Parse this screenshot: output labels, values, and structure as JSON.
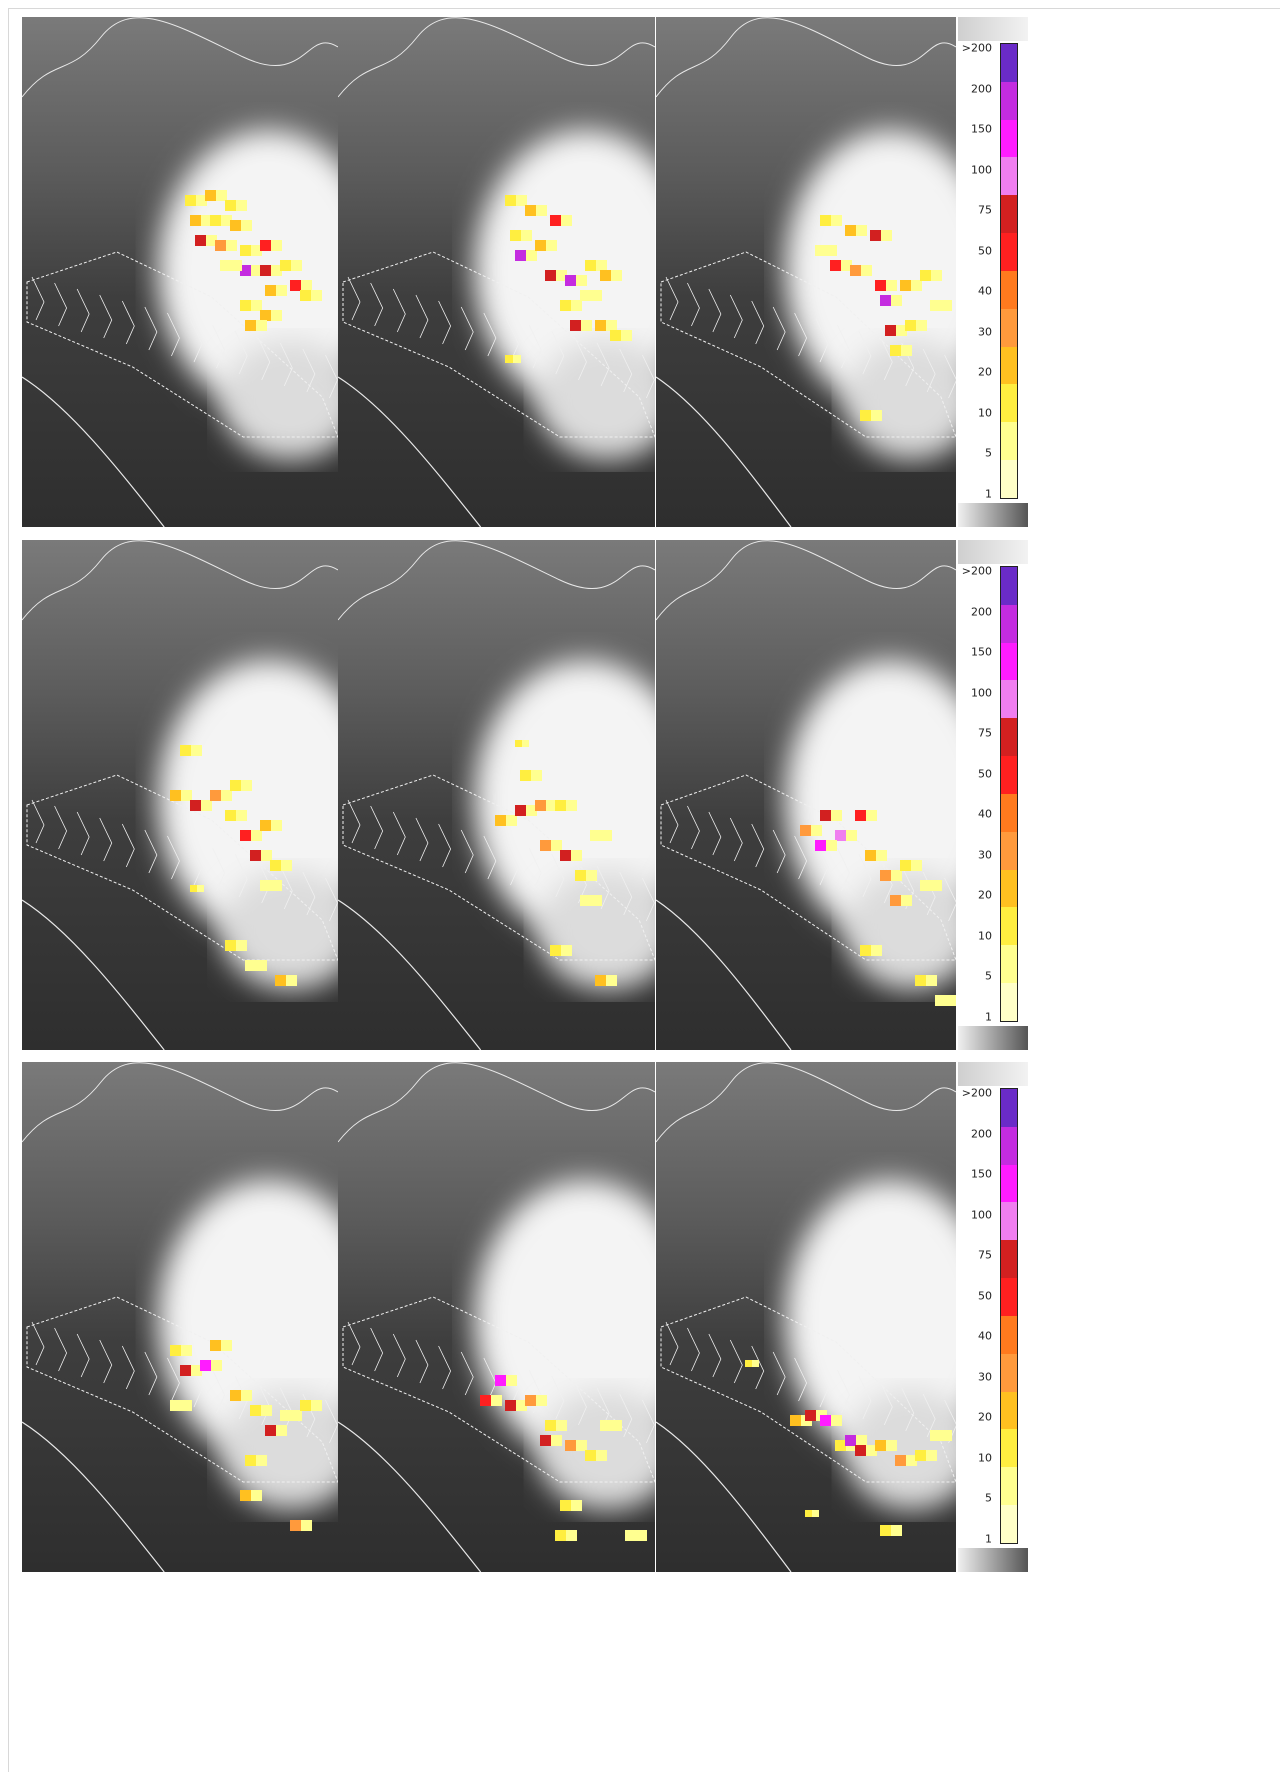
{
  "legend": {
    "labels": [
      ">200",
      "200",
      "150",
      "100",
      "75",
      "50",
      "40",
      "30",
      "20",
      "10",
      "5",
      "1"
    ],
    "colors": [
      "#6a2bc8",
      "#c42ce0",
      "#ff1cff",
      "#f07ef0",
      "#d22020",
      "#ff2020",
      "#ff7a1e",
      "#ff9a3c",
      "#ffc020",
      "#ffee40",
      "#ffff90",
      "#ffffc8"
    ]
  },
  "rows": [
    {
      "panels": [
        {
          "cells": [
            [
              185,
              195,
              22,
              "#ffee40"
            ],
            [
              205,
              190,
              22,
              "#ffc020"
            ],
            [
              225,
              200,
              22,
              "#ffee40"
            ],
            [
              190,
              215,
              22,
              "#ffc020"
            ],
            [
              210,
              215,
              22,
              "#ffee40"
            ],
            [
              230,
              220,
              22,
              "#ffc020"
            ],
            [
              195,
              235,
              22,
              "#d22020"
            ],
            [
              215,
              240,
              22,
              "#ff9a3c"
            ],
            [
              240,
              245,
              22,
              "#ffee40"
            ],
            [
              260,
              240,
              22,
              "#ff2020"
            ],
            [
              240,
              265,
              22,
              "#c42ce0"
            ],
            [
              260,
              265,
              22,
              "#d22020"
            ],
            [
              280,
              260,
              22,
              "#ffee40"
            ],
            [
              290,
              280,
              22,
              "#ff2020"
            ],
            [
              265,
              285,
              22,
              "#ffc020"
            ],
            [
              240,
              300,
              22,
              "#ffee40"
            ],
            [
              260,
              310,
              22,
              "#ffc020"
            ],
            [
              300,
              290,
              22,
              "#ffee40"
            ],
            [
              220,
              260,
              22,
              "#ffff90"
            ],
            [
              245,
              320,
              22,
              "#ffc020"
            ]
          ]
        },
        {
          "cells": [
            [
              505,
              195,
              22,
              "#ffee40"
            ],
            [
              525,
              205,
              22,
              "#ffc020"
            ],
            [
              550,
              215,
              22,
              "#ff2020"
            ],
            [
              510,
              230,
              22,
              "#ffee40"
            ],
            [
              515,
              250,
              22,
              "#c42ce0"
            ],
            [
              535,
              240,
              22,
              "#ffc020"
            ],
            [
              545,
              270,
              22,
              "#d22020"
            ],
            [
              565,
              275,
              22,
              "#c42ce0"
            ],
            [
              585,
              260,
              22,
              "#ffee40"
            ],
            [
              600,
              270,
              22,
              "#ffc020"
            ],
            [
              560,
              300,
              22,
              "#ffee40"
            ],
            [
              570,
              320,
              22,
              "#d22020"
            ],
            [
              595,
              320,
              22,
              "#ffc020"
            ],
            [
              610,
              330,
              22,
              "#ffee40"
            ],
            [
              505,
              355,
              16,
              "#ffee40"
            ],
            [
              580,
              290,
              22,
              "#ffff90"
            ]
          ]
        },
        {
          "cells": [
            [
              820,
              215,
              22,
              "#ffee40"
            ],
            [
              845,
              225,
              22,
              "#ffc020"
            ],
            [
              870,
              230,
              22,
              "#d22020"
            ],
            [
              830,
              260,
              22,
              "#ff2020"
            ],
            [
              850,
              265,
              22,
              "#ff9a3c"
            ],
            [
              875,
              280,
              22,
              "#ff2020"
            ],
            [
              880,
              295,
              22,
              "#c42ce0"
            ],
            [
              900,
              280,
              22,
              "#ffc020"
            ],
            [
              920,
              270,
              22,
              "#ffee40"
            ],
            [
              885,
              325,
              22,
              "#d22020"
            ],
            [
              905,
              320,
              22,
              "#ffee40"
            ],
            [
              930,
              300,
              22,
              "#ffff90"
            ],
            [
              890,
              345,
              22,
              "#ffee40"
            ],
            [
              860,
              410,
              22,
              "#ffee40"
            ],
            [
              815,
              245,
              22,
              "#ffff90"
            ]
          ]
        }
      ]
    },
    {
      "panels": [
        {
          "cells": [
            [
              180,
              745,
              22,
              "#ffee40"
            ],
            [
              170,
              790,
              22,
              "#ffc020"
            ],
            [
              190,
              800,
              22,
              "#d22020"
            ],
            [
              210,
              790,
              22,
              "#ff9a3c"
            ],
            [
              225,
              810,
              22,
              "#ffee40"
            ],
            [
              240,
              830,
              22,
              "#ff2020"
            ],
            [
              260,
              820,
              22,
              "#ffc020"
            ],
            [
              250,
              850,
              22,
              "#d22020"
            ],
            [
              270,
              860,
              22,
              "#ffee40"
            ],
            [
              230,
              780,
              22,
              "#ffee40"
            ],
            [
              190,
              885,
              14,
              "#ffee40"
            ],
            [
              225,
              940,
              22,
              "#ffee40"
            ],
            [
              245,
              960,
              22,
              "#ffff90"
            ],
            [
              275,
              975,
              22,
              "#ffc020"
            ],
            [
              260,
              880,
              22,
              "#ffff90"
            ]
          ]
        },
        {
          "cells": [
            [
              515,
              740,
              14,
              "#ffee40"
            ],
            [
              520,
              770,
              22,
              "#ffee40"
            ],
            [
              495,
              815,
              22,
              "#ffc020"
            ],
            [
              515,
              805,
              22,
              "#d22020"
            ],
            [
              535,
              800,
              22,
              "#ff9a3c"
            ],
            [
              555,
              800,
              22,
              "#ffee40"
            ],
            [
              540,
              840,
              22,
              "#ff9a3c"
            ],
            [
              560,
              850,
              22,
              "#d22020"
            ],
            [
              575,
              870,
              22,
              "#ffee40"
            ],
            [
              590,
              830,
              22,
              "#ffff90"
            ],
            [
              550,
              945,
              22,
              "#ffee40"
            ],
            [
              595,
              975,
              22,
              "#ffc020"
            ],
            [
              580,
              895,
              22,
              "#ffff90"
            ]
          ]
        },
        {
          "cells": [
            [
              800,
              825,
              22,
              "#ff9a3c"
            ],
            [
              820,
              810,
              22,
              "#d22020"
            ],
            [
              835,
              830,
              22,
              "#f07ef0"
            ],
            [
              855,
              810,
              22,
              "#ff2020"
            ],
            [
              815,
              840,
              22,
              "#ff1cff"
            ],
            [
              865,
              850,
              22,
              "#ffc020"
            ],
            [
              880,
              870,
              22,
              "#ff9a3c"
            ],
            [
              900,
              860,
              22,
              "#ffee40"
            ],
            [
              890,
              895,
              22,
              "#ff9a3c"
            ],
            [
              920,
              880,
              22,
              "#ffff90"
            ],
            [
              860,
              945,
              22,
              "#ffee40"
            ],
            [
              915,
              975,
              22,
              "#ffee40"
            ],
            [
              935,
              995,
              22,
              "#ffff90"
            ]
          ]
        }
      ]
    },
    {
      "panels": [
        {
          "cells": [
            [
              170,
              1345,
              22,
              "#ffee40"
            ],
            [
              180,
              1365,
              22,
              "#d22020"
            ],
            [
              200,
              1360,
              22,
              "#ff1cff"
            ],
            [
              210,
              1340,
              22,
              "#ffc020"
            ],
            [
              230,
              1390,
              22,
              "#ffc020"
            ],
            [
              250,
              1405,
              22,
              "#ffee40"
            ],
            [
              265,
              1425,
              22,
              "#d22020"
            ],
            [
              280,
              1410,
              22,
              "#ffff90"
            ],
            [
              300,
              1400,
              22,
              "#ffee40"
            ],
            [
              245,
              1455,
              22,
              "#ffee40"
            ],
            [
              240,
              1490,
              22,
              "#ffc020"
            ],
            [
              290,
              1520,
              22,
              "#ff9a3c"
            ],
            [
              170,
              1400,
              22,
              "#ffff90"
            ]
          ]
        },
        {
          "cells": [
            [
              480,
              1395,
              22,
              "#ff2020"
            ],
            [
              495,
              1375,
              22,
              "#ff1cff"
            ],
            [
              505,
              1400,
              22,
              "#d22020"
            ],
            [
              525,
              1395,
              22,
              "#ff9a3c"
            ],
            [
              545,
              1420,
              22,
              "#ffee40"
            ],
            [
              540,
              1435,
              22,
              "#d22020"
            ],
            [
              565,
              1440,
              22,
              "#ff9a3c"
            ],
            [
              585,
              1450,
              22,
              "#ffee40"
            ],
            [
              600,
              1420,
              22,
              "#ffff90"
            ],
            [
              560,
              1500,
              22,
              "#ffee40"
            ],
            [
              555,
              1530,
              22,
              "#ffee40"
            ],
            [
              625,
              1530,
              22,
              "#ffff90"
            ]
          ]
        },
        {
          "cells": [
            [
              745,
              1360,
              14,
              "#ffee40"
            ],
            [
              790,
              1415,
              22,
              "#ffc020"
            ],
            [
              805,
              1410,
              22,
              "#d22020"
            ],
            [
              820,
              1415,
              22,
              "#ff1cff"
            ],
            [
              835,
              1440,
              22,
              "#ffee40"
            ],
            [
              845,
              1435,
              22,
              "#c42ce0"
            ],
            [
              855,
              1445,
              22,
              "#d22020"
            ],
            [
              875,
              1440,
              22,
              "#ffc020"
            ],
            [
              895,
              1455,
              22,
              "#ff9a3c"
            ],
            [
              915,
              1450,
              22,
              "#ffee40"
            ],
            [
              930,
              1430,
              22,
              "#ffff90"
            ],
            [
              880,
              1525,
              22,
              "#ffee40"
            ],
            [
              805,
              1510,
              14,
              "#ffee40"
            ]
          ]
        }
      ]
    }
  ]
}
